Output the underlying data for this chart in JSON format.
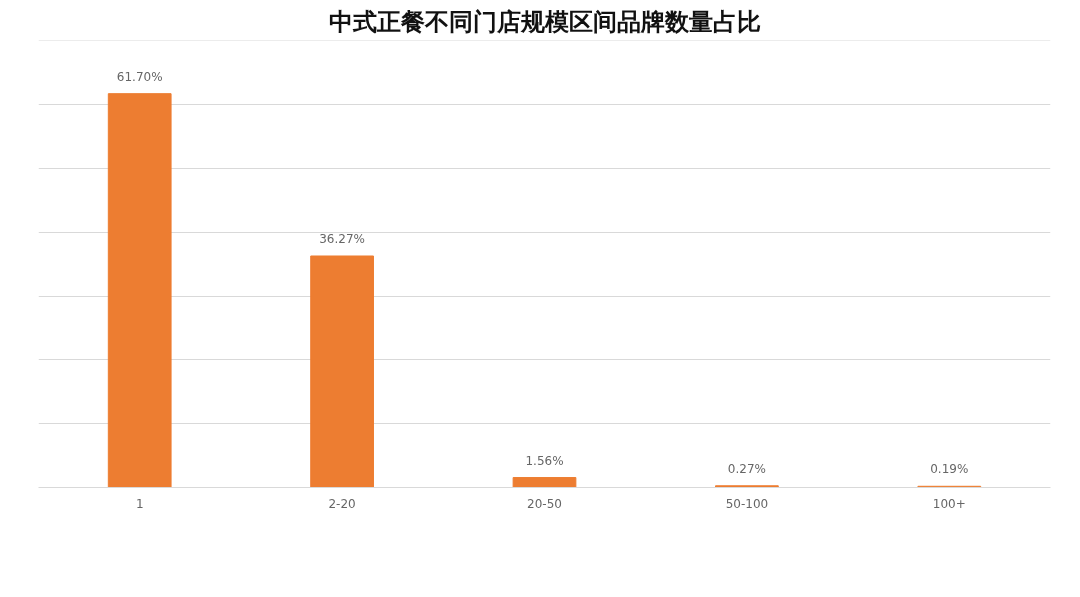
{
  "chart_data": {
    "type": "bar",
    "title": "中式正餐不同门店规模区间品牌数量占比",
    "categories": [
      "1",
      "2-20",
      "20-50",
      "50-100",
      "100+"
    ],
    "values": [
      61.7,
      36.27,
      1.56,
      0.27,
      0.19
    ],
    "value_labels": [
      "61.70%",
      "36.27%",
      "1.56%",
      "0.27%",
      "0.19%"
    ],
    "color": "#ed7d31",
    "grid": "y",
    "tick_labels": "x"
  }
}
